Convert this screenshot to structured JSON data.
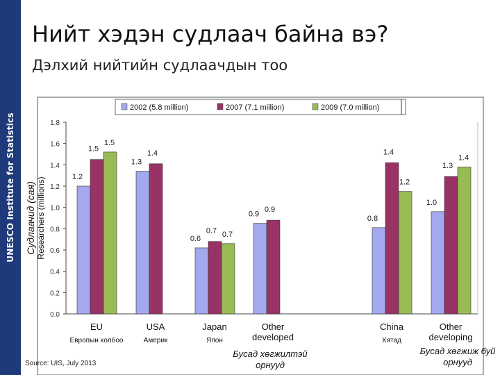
{
  "page": {
    "title": "Нийт хэдэн судлаач байна вэ?",
    "subtitle": "Дэлхий нийтийн судлаачдын тоо",
    "sidebar_text": "UNESCO Institute for Statistics",
    "source": "Source: UIS, July 2013"
  },
  "chart_data": {
    "type": "bar",
    "ylabel": "Researchers (millions)",
    "ylabel_mn": "Судлаачид (сая)",
    "ylim": [
      0,
      1.8
    ],
    "yticks": [
      "0.0",
      "0.2",
      "0.4",
      "0.6",
      "0.8",
      "1.0",
      "1.2",
      "1.4",
      "1.6",
      "1.8"
    ],
    "grid": false,
    "legend_position": "top",
    "categories": [
      "EU",
      "USA",
      "Japan",
      "Other developed",
      "China",
      "Other developing"
    ],
    "category_labels": [
      [
        "EU"
      ],
      [
        "USA"
      ],
      [
        "Japan"
      ],
      [
        "Other",
        "developed"
      ],
      [
        "China"
      ],
      [
        "Other",
        "developing"
      ]
    ],
    "translations": [
      [
        "Европын холбоо"
      ],
      [
        "Америк"
      ],
      [
        "Япон"
      ],
      [
        "Бусад хөгжилтэй",
        "орнууд"
      ],
      [
        "Хятад"
      ],
      [
        "Бусад хөгжиж буй",
        "орнууд"
      ]
    ],
    "series": [
      {
        "name": "2002 (5.8 million)",
        "color": "#a4a8ee",
        "values": [
          1.2,
          1.34,
          0.62,
          0.85,
          0.81,
          0.96
        ],
        "labels": [
          "1.2",
          "1.3",
          "0.6",
          "0.9",
          "0.8",
          "1.0"
        ]
      },
      {
        "name": "2007 (7.1 million)",
        "color": "#993366",
        "values": [
          1.45,
          1.41,
          0.68,
          0.88,
          1.42,
          1.29
        ],
        "labels": [
          "1.5",
          "1.4",
          "0.7",
          "0.9",
          "1.4",
          "1.3"
        ]
      },
      {
        "name": "2009 (7.0 million)",
        "color": "#99bb55",
        "values": [
          1.52,
          null,
          0.66,
          null,
          1.15,
          1.38
        ],
        "labels": [
          "1.5",
          null,
          "0.7",
          null,
          "1.2",
          "1.4"
        ]
      }
    ]
  }
}
